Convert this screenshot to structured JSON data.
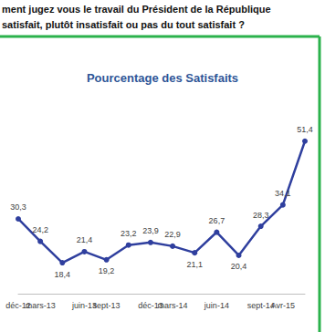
{
  "chart_data": {
    "type": "line",
    "title": "Pourcentage des Satisfaits",
    "annotations": [
      "ment jugez vous le travail du Président de la République",
      "satisfait, plutôt insatisfait ou pas du tout satisfait ?"
    ],
    "categories": [
      "déc-12",
      "mars-13",
      null,
      "juin-13",
      "sept-13",
      null,
      "déc-13",
      "mars-14",
      null,
      "juin-14",
      null,
      "sept-14",
      "Avr-15",
      null
    ],
    "values": [
      30.3,
      24.2,
      18.4,
      21.4,
      19.2,
      23.2,
      23.9,
      22.9,
      21.1,
      26.7,
      20.4,
      28.3,
      34.1,
      51.4
    ],
    "value_labels": [
      "30,3",
      "24,2",
      "18,4",
      "21,4",
      "19,2",
      "23,2",
      "23,9",
      "22,9",
      "21,1",
      "26,7",
      "20,4",
      "28,3",
      "34,1",
      "51,4"
    ],
    "color": "#2f3f9e",
    "marker": "circle",
    "data_labels": true,
    "ylim": [
      10,
      60
    ],
    "grid": false,
    "tick_labels": "x"
  }
}
